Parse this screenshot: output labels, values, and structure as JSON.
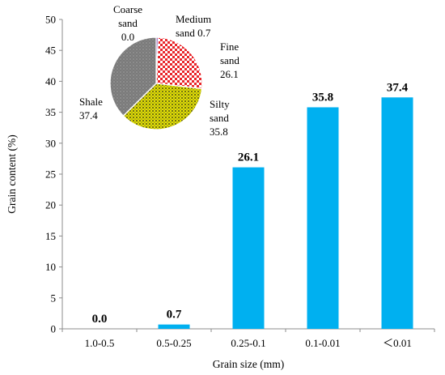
{
  "chart_data": [
    {
      "type": "bar",
      "categories": [
        "1.0-0.5",
        "0.5-0.25",
        "0.25-0.1",
        "0.1-0.01",
        "＜0.01"
      ],
      "values": [
        0.0,
        0.7,
        26.1,
        35.8,
        37.4
      ],
      "data_labels": [
        "0.0",
        "0.7",
        "26.1",
        "35.8",
        "37.4"
      ],
      "xlabel": "Grain size (mm)",
      "ylabel": "Grain content (%)",
      "ylim": [
        0,
        50
      ],
      "yticks": [
        0,
        5,
        10,
        15,
        20,
        25,
        30,
        35,
        40,
        45,
        50
      ],
      "bar_color": "#00b0f0",
      "grid": false
    },
    {
      "type": "pie",
      "slices": [
        {
          "name": "Coarse sand",
          "value": 0.0,
          "label_lines": [
            "Coarse",
            "sand",
            "0.0"
          ],
          "color": "#b0b0b0",
          "pattern": "none"
        },
        {
          "name": "Medium sand",
          "value": 0.7,
          "label_lines": [
            "Medium",
            "sand 0.7"
          ],
          "color": "#7030a0",
          "pattern": "none"
        },
        {
          "name": "Fine sand",
          "value": 26.1,
          "label_lines": [
            "Fine",
            "sand",
            "26.1"
          ],
          "color": "#ff0000",
          "pattern": "checker"
        },
        {
          "name": "Silty sand",
          "value": 35.8,
          "label_lines": [
            "Silty",
            "sand",
            "35.8"
          ],
          "color": "#ffff00",
          "pattern": "dots"
        },
        {
          "name": "Shale",
          "value": 37.4,
          "label_lines": [
            "Shale",
            "37.4"
          ],
          "color": "#808080",
          "pattern": "dots"
        }
      ]
    }
  ]
}
